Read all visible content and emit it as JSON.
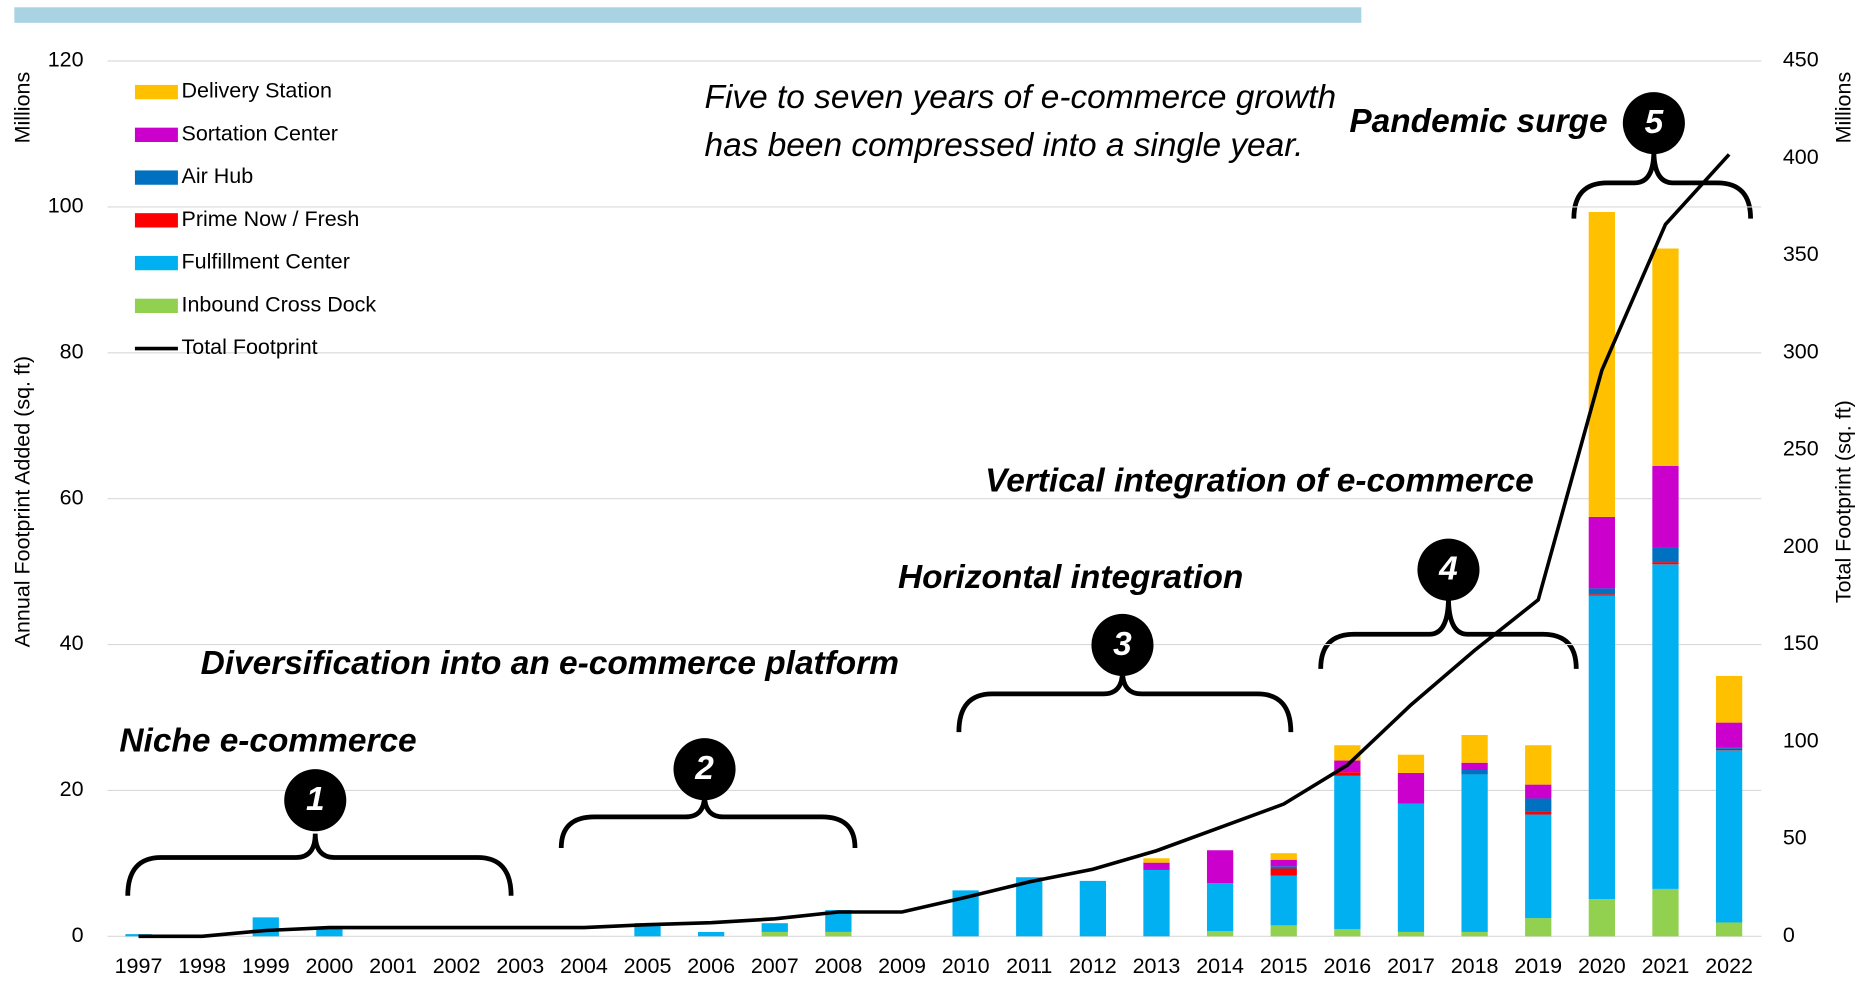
{
  "chart_data": {
    "type": "bar",
    "categories": [
      "1997",
      "1998",
      "1999",
      "2000",
      "2001",
      "2002",
      "2003",
      "2004",
      "2005",
      "2006",
      "2007",
      "2008",
      "2009",
      "2010",
      "2011",
      "2012",
      "2013",
      "2014",
      "2015",
      "2016",
      "2017",
      "2018",
      "2019",
      "2020",
      "2021",
      "2022"
    ],
    "series": [
      {
        "name": "Inbound Cross Dock",
        "color": "#92d050",
        "values": [
          0,
          0,
          0,
          0,
          0,
          0,
          0,
          0,
          0,
          0,
          0.6,
          0.6,
          0,
          0,
          0,
          0,
          0,
          0.7,
          1.5,
          1.0,
          0.6,
          0.6,
          2.5,
          5.1,
          6.5,
          1.9
        ]
      },
      {
        "name": "Fulfillment Center",
        "color": "#00b0f0",
        "values": [
          0.3,
          0,
          2.6,
          1.2,
          0,
          0,
          0,
          0,
          1.8,
          0.6,
          1.2,
          3.0,
          0,
          6.3,
          8.1,
          7.6,
          9.1,
          6.6,
          6.8,
          21.0,
          17.6,
          21.6,
          14.2,
          41.6,
          44.5,
          23.6
        ]
      },
      {
        "name": "Prime Now / Fresh",
        "color": "#ff0000",
        "values": [
          0,
          0,
          0,
          0,
          0,
          0,
          0,
          0,
          0,
          0,
          0,
          0,
          0,
          0,
          0,
          0,
          0,
          0,
          1.0,
          0.5,
          0,
          0,
          0.4,
          0.2,
          0.3,
          0.2
        ]
      },
      {
        "name": "Air Hub",
        "color": "#0070c0",
        "values": [
          0,
          0,
          0,
          0,
          0,
          0,
          0,
          0,
          0,
          0,
          0,
          0,
          0,
          0,
          0,
          0,
          0,
          0,
          0.3,
          0,
          0,
          0.6,
          1.8,
          0.8,
          2.0,
          0.2
        ]
      },
      {
        "name": "Sortation Center",
        "color": "#cc00cc",
        "values": [
          0,
          0,
          0,
          0,
          0,
          0,
          0,
          0,
          0,
          0,
          0,
          0,
          0,
          0,
          0,
          0,
          1.0,
          4.5,
          0.9,
          1.6,
          4.2,
          1.0,
          1.9,
          9.8,
          11.2,
          3.4
        ]
      },
      {
        "name": "Delivery Station",
        "color": "#ffc000",
        "values": [
          0,
          0,
          0,
          0,
          0,
          0,
          0,
          0,
          0,
          0,
          0,
          0,
          0,
          0,
          0,
          0,
          0.6,
          0,
          0.9,
          2.1,
          2.5,
          3.8,
          5.4,
          41.8,
          29.8,
          6.4
        ]
      },
      {
        "name": "Total Footprint",
        "color": "#000000",
        "type": "line",
        "axis": "y2",
        "values": [
          0,
          0,
          3,
          4.5,
          4.5,
          4.5,
          4.5,
          4.5,
          6,
          7,
          9,
          12.5,
          12.5,
          20,
          28,
          34.5,
          44,
          56,
          68,
          88,
          119,
          147,
          173,
          291,
          366,
          402
        ]
      }
    ],
    "y_label": "Annual Footprint Added  (sq. ft)",
    "y_unit": "Millions",
    "y2_label": "Total Footprint (sq. ft)",
    "y2_unit": "Millions",
    "ylim": [
      0,
      120
    ],
    "yticks": [
      0,
      20,
      40,
      60,
      80,
      100,
      120
    ],
    "y2lim": [
      0,
      450
    ],
    "y2ticks": [
      0,
      50,
      100,
      150,
      200,
      250,
      300,
      350,
      400,
      450
    ],
    "legend": "upper left",
    "annotations": [
      "Niche e-commerce",
      "Diversification into an e-commerce platform",
      "Horizontal integration",
      "Vertical integration of e-commerce",
      "Pandemic surge"
    ],
    "phase_numbers": [
      "1",
      "2",
      "3",
      "4",
      "5"
    ],
    "quote": [
      "Five to seven years of e-commerce growth",
      "has been compressed into a single year."
    ]
  }
}
